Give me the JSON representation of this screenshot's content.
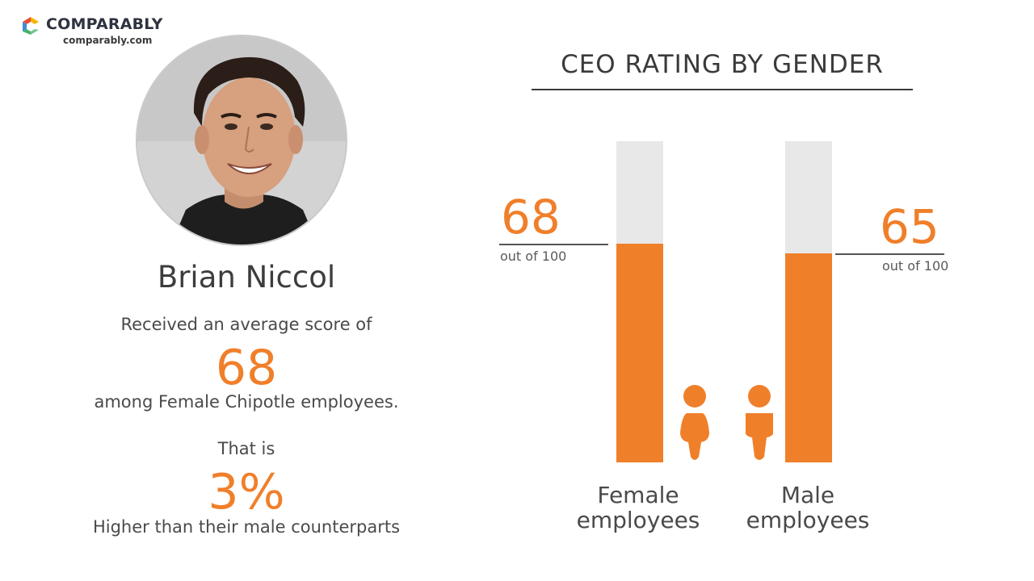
{
  "brand": {
    "name": "COMPARABLY",
    "url": "comparably.com",
    "logo_colors": [
      "#f4b400",
      "#e94e3c",
      "#3b8fd6",
      "#45b36b"
    ]
  },
  "profile": {
    "ceo_name": "Brian Niccol",
    "intro_text": "Received an average score of",
    "score": "68",
    "score_description": "among Female Chipotle employees.",
    "comparison_intro": "That is",
    "percent": "3%",
    "comparison_description": "Higher than their male counterparts"
  },
  "chart": {
    "title": "CEO RATING BY GENDER",
    "female_value_text": "68",
    "female_sub": "out of 100",
    "female_label": "Female employees",
    "male_value_text": "65",
    "male_sub": "out of 100",
    "male_label": "Male employees"
  },
  "chart_data": {
    "type": "bar",
    "title": "CEO RATING BY GENDER",
    "categories": [
      "Female employees",
      "Male employees"
    ],
    "values": [
      68,
      65
    ],
    "ylim": [
      0,
      100
    ],
    "colors": {
      "fill": "#f07f2a",
      "track": "#e8e8e8"
    },
    "icons": [
      "female-person-icon",
      "male-person-icon"
    ]
  }
}
